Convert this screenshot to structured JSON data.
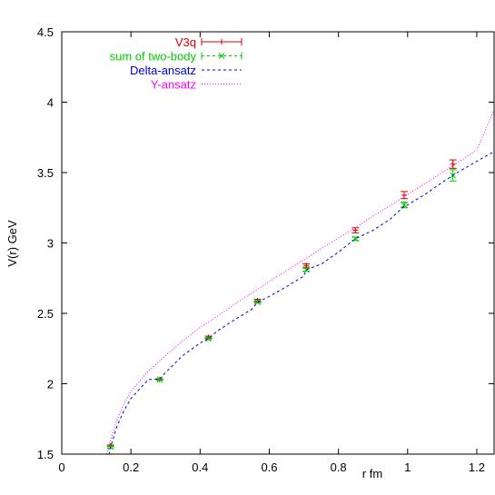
{
  "chart_data": {
    "type": "line",
    "title": "",
    "xlabel": "r fm",
    "ylabel": "V(r) GeV",
    "xlim": [
      0,
      1.25
    ],
    "ylim": [
      1.5,
      4.5
    ],
    "x_ticks": [
      0,
      0.2,
      0.4,
      0.6,
      0.8,
      1.0,
      1.2
    ],
    "x_tick_labels": [
      "0",
      "0.2",
      "0.4",
      "0.6",
      "0.8",
      "1",
      "1.2"
    ],
    "y_ticks": [
      1.5,
      2,
      2.5,
      3,
      3.5,
      4,
      4.5
    ],
    "y_tick_labels": [
      "1.5",
      "2",
      "2.5",
      "3",
      "3.5",
      "4",
      "4.5"
    ],
    "legend_position": "top-left",
    "series": [
      {
        "name": "V3q",
        "kind": "errorbars",
        "marker": "plus",
        "color": "#dd0000",
        "x": [
          0.141,
          0.283,
          0.424,
          0.566,
          0.707,
          0.849,
          0.99,
          1.131
        ],
        "y": [
          1.56,
          2.03,
          2.33,
          2.59,
          2.84,
          3.09,
          3.34,
          3.56
        ],
        "err": [
          0.005,
          0.005,
          0.008,
          0.01,
          0.012,
          0.018,
          0.025,
          0.03
        ]
      },
      {
        "name": "sum of two-body",
        "kind": "errorbars",
        "marker": "cross",
        "color": "#00cc00",
        "x": [
          0.141,
          0.283,
          0.424,
          0.566,
          0.707,
          0.849,
          0.99,
          1.131
        ],
        "y": [
          1.55,
          2.03,
          2.32,
          2.58,
          2.81,
          3.03,
          3.27,
          3.48
        ],
        "err": [
          0.005,
          0.005,
          0.006,
          0.008,
          0.01,
          0.012,
          0.02,
          0.04
        ]
      },
      {
        "name": "Delta-ansatz",
        "kind": "curve",
        "dash": "dashed",
        "color": "#0000dd",
        "x": [
          0.13,
          0.141,
          0.16,
          0.18,
          0.2,
          0.25,
          0.283,
          0.3,
          0.35,
          0.4,
          0.424,
          0.45,
          0.5,
          0.55,
          0.566,
          0.6,
          0.65,
          0.7,
          0.707,
          0.75,
          0.8,
          0.849,
          0.9,
          0.95,
          0.99,
          1.0,
          1.05,
          1.1,
          1.131,
          1.15,
          1.2,
          1.25
        ],
        "y": [
          1.42,
          1.55,
          1.7,
          1.81,
          1.895,
          2.03,
          2.033,
          2.08,
          2.2,
          2.29,
          2.32,
          2.375,
          2.455,
          2.53,
          2.58,
          2.62,
          2.69,
          2.765,
          2.81,
          2.85,
          2.935,
          3.03,
          3.09,
          3.17,
          3.26,
          3.27,
          3.345,
          3.43,
          3.48,
          3.51,
          3.58,
          3.65
        ]
      },
      {
        "name": "Y-ansatz",
        "kind": "curve",
        "dash": "dotted",
        "color": "#ff00ff",
        "x": [
          0.13,
          0.141,
          0.16,
          0.18,
          0.2,
          0.25,
          0.283,
          0.3,
          0.35,
          0.4,
          0.45,
          0.5,
          0.55,
          0.6,
          0.65,
          0.7,
          0.75,
          0.8,
          0.85,
          0.9,
          0.95,
          1.0,
          1.05,
          1.1,
          1.15,
          1.2,
          1.25
        ],
        "y": [
          1.5,
          1.6,
          1.745,
          1.86,
          1.945,
          2.09,
          2.16,
          2.2,
          2.305,
          2.4,
          2.48,
          2.565,
          2.645,
          2.725,
          2.805,
          2.88,
          2.96,
          3.035,
          3.11,
          3.19,
          3.265,
          3.345,
          3.42,
          3.5,
          3.58,
          3.66,
          3.945
        ]
      }
    ]
  }
}
